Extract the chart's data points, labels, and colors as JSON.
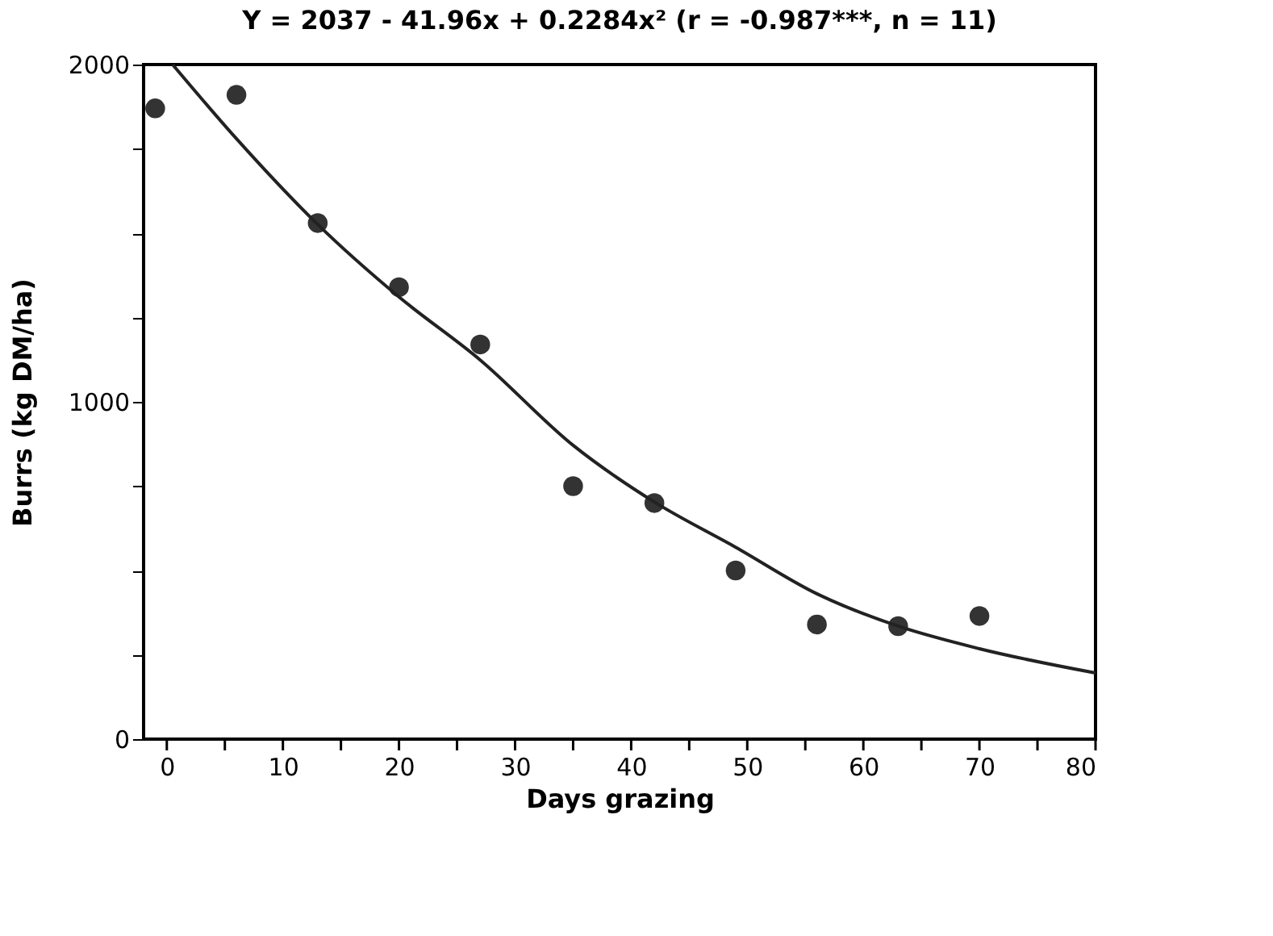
{
  "chart_data": {
    "type": "scatter",
    "title": "Y = 2037 - 41.96x + 0.2284x² (r = -0.987***, n = 11)",
    "xlabel": "Days  grazing",
    "ylabel": "Burrs  (kg  DM/ha)",
    "series": [
      {
        "color": "#333333",
        "marker": "circle",
        "x": [
          -1,
          6,
          13,
          20,
          27,
          35,
          42,
          49,
          56,
          63,
          70
        ],
        "values": [
          1870,
          1910,
          1530,
          1340,
          1170,
          750,
          700,
          500,
          340,
          335,
          365
        ]
      },
      {
        "type": "line",
        "color": "#222222",
        "line_style": "solid",
        "x": [
          0.5,
          6,
          13,
          20,
          27,
          35,
          42,
          49,
          56,
          63,
          70,
          80
        ],
        "values": [
          2000,
          1780,
          1526,
          1311,
          1124,
          871,
          703,
          569,
          431,
          335,
          268,
          196
        ]
      }
    ],
    "xlim": [
      -2,
      80
    ],
    "ylim": [
      0,
      2000
    ],
    "xticks": [
      0,
      {
        "value": 5,
        "label": null
      },
      10,
      {
        "value": 15,
        "label": null
      },
      20,
      {
        "value": 25,
        "label": null
      },
      30,
      {
        "value": 35,
        "label": null
      },
      40,
      {
        "value": 45,
        "label": null
      },
      50,
      {
        "value": 55,
        "label": null
      },
      60,
      {
        "value": 65,
        "label": null
      },
      70,
      {
        "value": 75,
        "label": null
      },
      80
    ],
    "yticks": [
      0,
      {
        "value": 250,
        "label": null
      },
      {
        "value": 500,
        "label": null
      },
      {
        "value": 750,
        "label": null
      },
      1000,
      {
        "value": 1250,
        "label": null
      },
      {
        "value": 1500,
        "label": null
      },
      {
        "value": 1750,
        "label": null
      },
      2000
    ],
    "grid": false
  }
}
